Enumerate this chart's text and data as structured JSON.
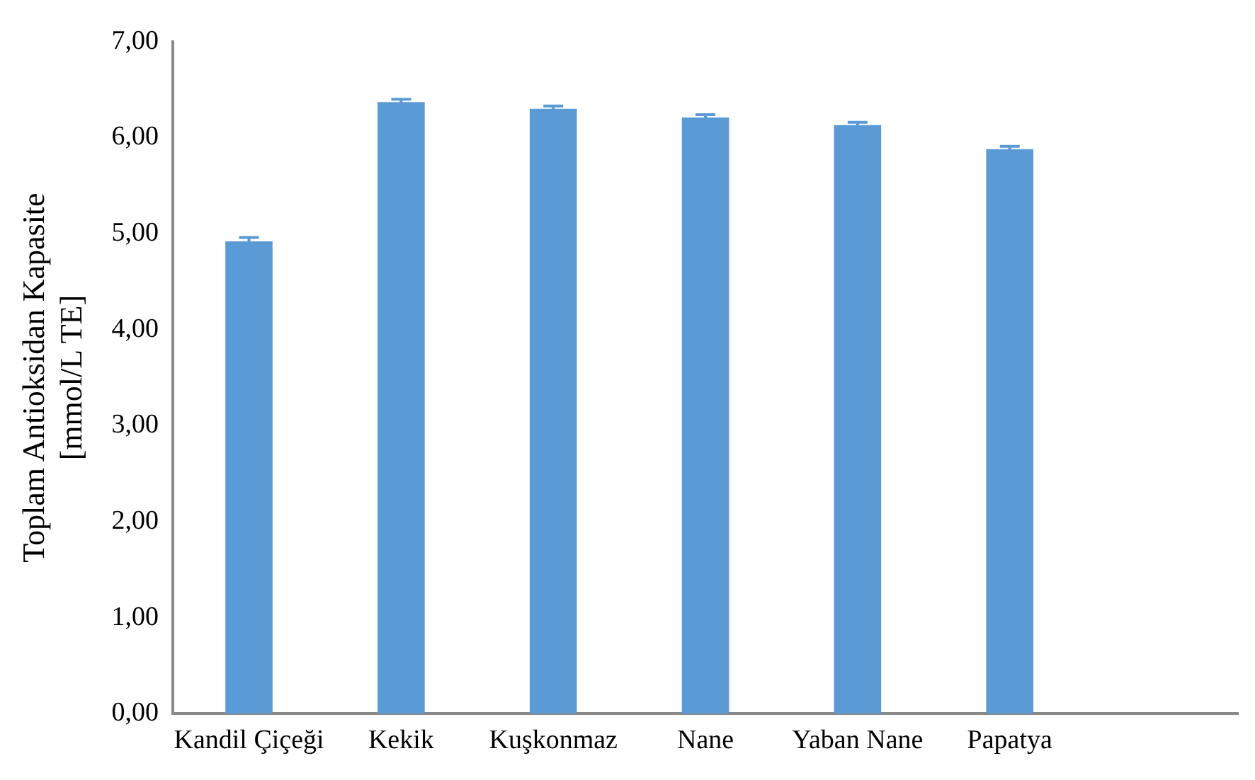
{
  "chart_data": {
    "type": "bar",
    "ylabel": "Toplam Antioksidan Kapasite\n[mmol/L TE]",
    "categories": [
      "Kandil Çiçeği",
      "Kekik",
      "Kuşkonmaz",
      "Nane",
      "Yaban Nane",
      "Papatya",
      null
    ],
    "values": [
      4.92,
      6.37,
      6.3,
      6.21,
      6.13,
      5.88,
      null
    ],
    "errors": [
      0.04,
      0.03,
      0.03,
      0.03,
      0.03,
      0.03,
      null
    ],
    "color": "#5b9bd5",
    "ylim": [
      0,
      7
    ],
    "yticks": [
      {
        "value": 0,
        "label": "0,00"
      },
      {
        "value": 1,
        "label": "1,00"
      },
      {
        "value": 2,
        "label": "2,00"
      },
      {
        "value": 3,
        "label": "3,00"
      },
      {
        "value": 4,
        "label": "4,00"
      },
      {
        "value": 5,
        "label": "5,00"
      },
      {
        "value": 6,
        "label": "6,00"
      },
      {
        "value": 7,
        "label": "7,00"
      }
    ],
    "grid": false,
    "legend": false
  }
}
